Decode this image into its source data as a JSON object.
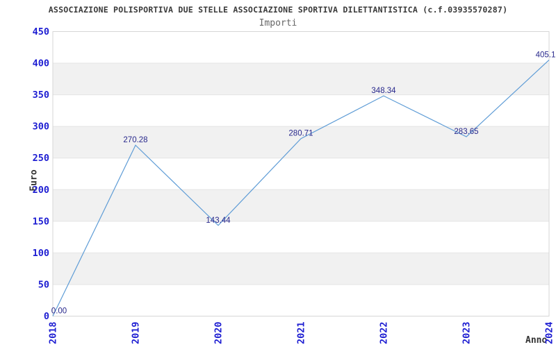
{
  "chart_data": {
    "type": "line",
    "title": "ASSOCIAZIONE POLISPORTIVA DUE STELLE ASSOCIAZIONE SPORTIVA DILETTANTISTICA (c.f.03935570287)",
    "subtitle": "Importi",
    "xlabel": "Anno",
    "ylabel": "Euro",
    "categories": [
      "2018",
      "2019",
      "2020",
      "2021",
      "2022",
      "2023",
      "2024"
    ],
    "values": [
      0.0,
      270.28,
      143.44,
      280.71,
      348.34,
      283.65,
      405.1
    ],
    "point_labels": [
      "0.00",
      "270.28",
      "143.44",
      "280.71",
      "348.34",
      "283.65",
      "405.1"
    ],
    "ylim": [
      0,
      450
    ],
    "ytick_step": 50,
    "grid": "horizontal-bands-alternating",
    "legend": "none",
    "colors": {
      "line": "#5e9cd6",
      "band": "#f1f1f1",
      "grid_line": "#e4e4e4",
      "plot_border": "#d6d6d6",
      "tick_label": "#1e1ed2",
      "point_label": "#28288c",
      "title": "#3a3a3a",
      "subtitle": "#666666",
      "axis_title": "#333333"
    }
  }
}
